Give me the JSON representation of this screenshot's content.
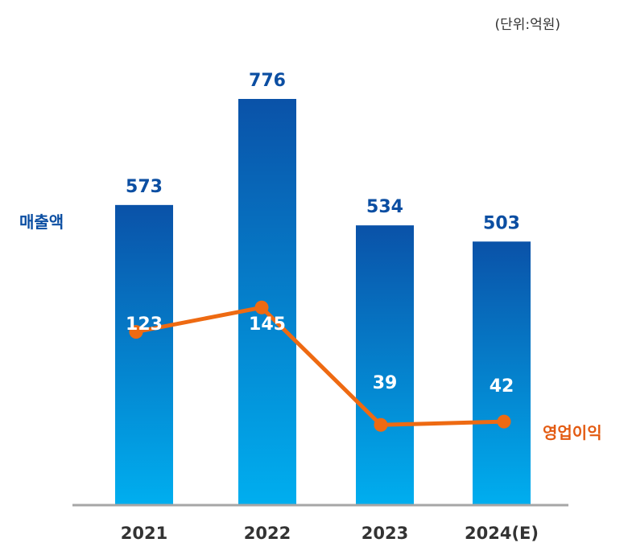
{
  "unit_label": "(단위:억원)",
  "colors": {
    "bar_top": "#0a52a8",
    "bar_bottom": "#00aeef",
    "revenue_text": "#0b4ea2",
    "operating_profit_line": "#ee6a12",
    "operating_profit_text": "#e35b12",
    "inner_label": "#ffffff",
    "axis": "#a6a6a6",
    "tick_label": "#333333"
  },
  "chart_data": {
    "type": "bar",
    "categories": [
      "2021",
      "2022",
      "2023",
      "2024(E)"
    ],
    "series": [
      {
        "name": "매출액",
        "type": "bar",
        "values": [
          573,
          776,
          534,
          503
        ]
      },
      {
        "name": "영업이익",
        "type": "line",
        "values": [
          123,
          145,
          39,
          42
        ]
      }
    ],
    "title": "",
    "xlabel": "",
    "ylabel": "",
    "ylim": [
      0,
      776
    ],
    "grid": false
  }
}
